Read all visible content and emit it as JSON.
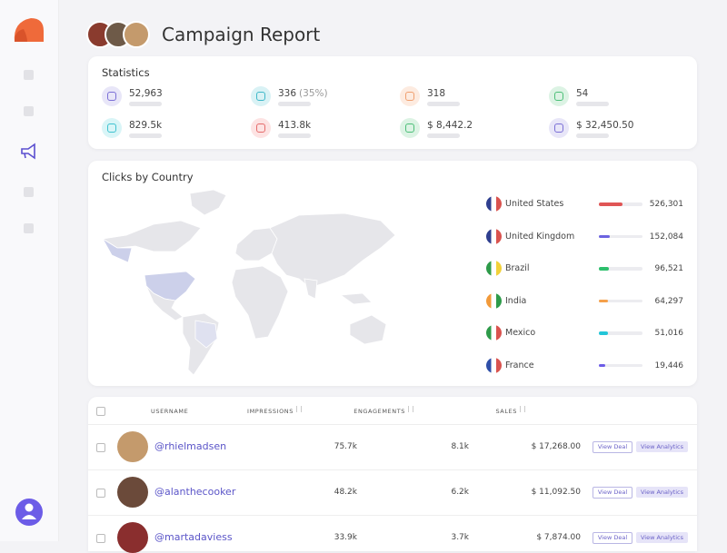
{
  "header": {
    "title": "Campaign Report"
  },
  "statistics": {
    "title": "Statistics",
    "items": [
      {
        "value": "52,963"
      },
      {
        "value": "336",
        "note": "(35%)"
      },
      {
        "value": "318"
      },
      {
        "value": "54"
      },
      {
        "value": "829.5k"
      },
      {
        "value": "413.8k"
      },
      {
        "value": "$ 8,442.2"
      },
      {
        "value": "$ 32,450.50"
      }
    ]
  },
  "clicks": {
    "title": "Clicks by Country",
    "countries": [
      {
        "name": "United States",
        "value": "526,301"
      },
      {
        "name": "United Kingdom",
        "value": "152,084"
      },
      {
        "name": "Brazil",
        "value": "96,521"
      },
      {
        "name": "India",
        "value": "64,297"
      },
      {
        "name": "Mexico",
        "value": "51,016"
      },
      {
        "name": "France",
        "value": "19,446"
      }
    ]
  },
  "table": {
    "columns": [
      "USERNAME",
      "IMPRESSIONS",
      "ENGAGEMENTS",
      "SALES"
    ],
    "actions": [
      "View Deal",
      "View Analytics"
    ],
    "rows": [
      [
        "@rhielmadsen",
        "75.7k",
        "8.1k",
        "$ 17,268.00"
      ],
      [
        "@alanthecooker",
        "48.2k",
        "6.2k",
        "$ 11,092.50"
      ],
      [
        "@martadaviess",
        "33.9k",
        "3.7k",
        "$ 7,874.00"
      ]
    ]
  }
}
